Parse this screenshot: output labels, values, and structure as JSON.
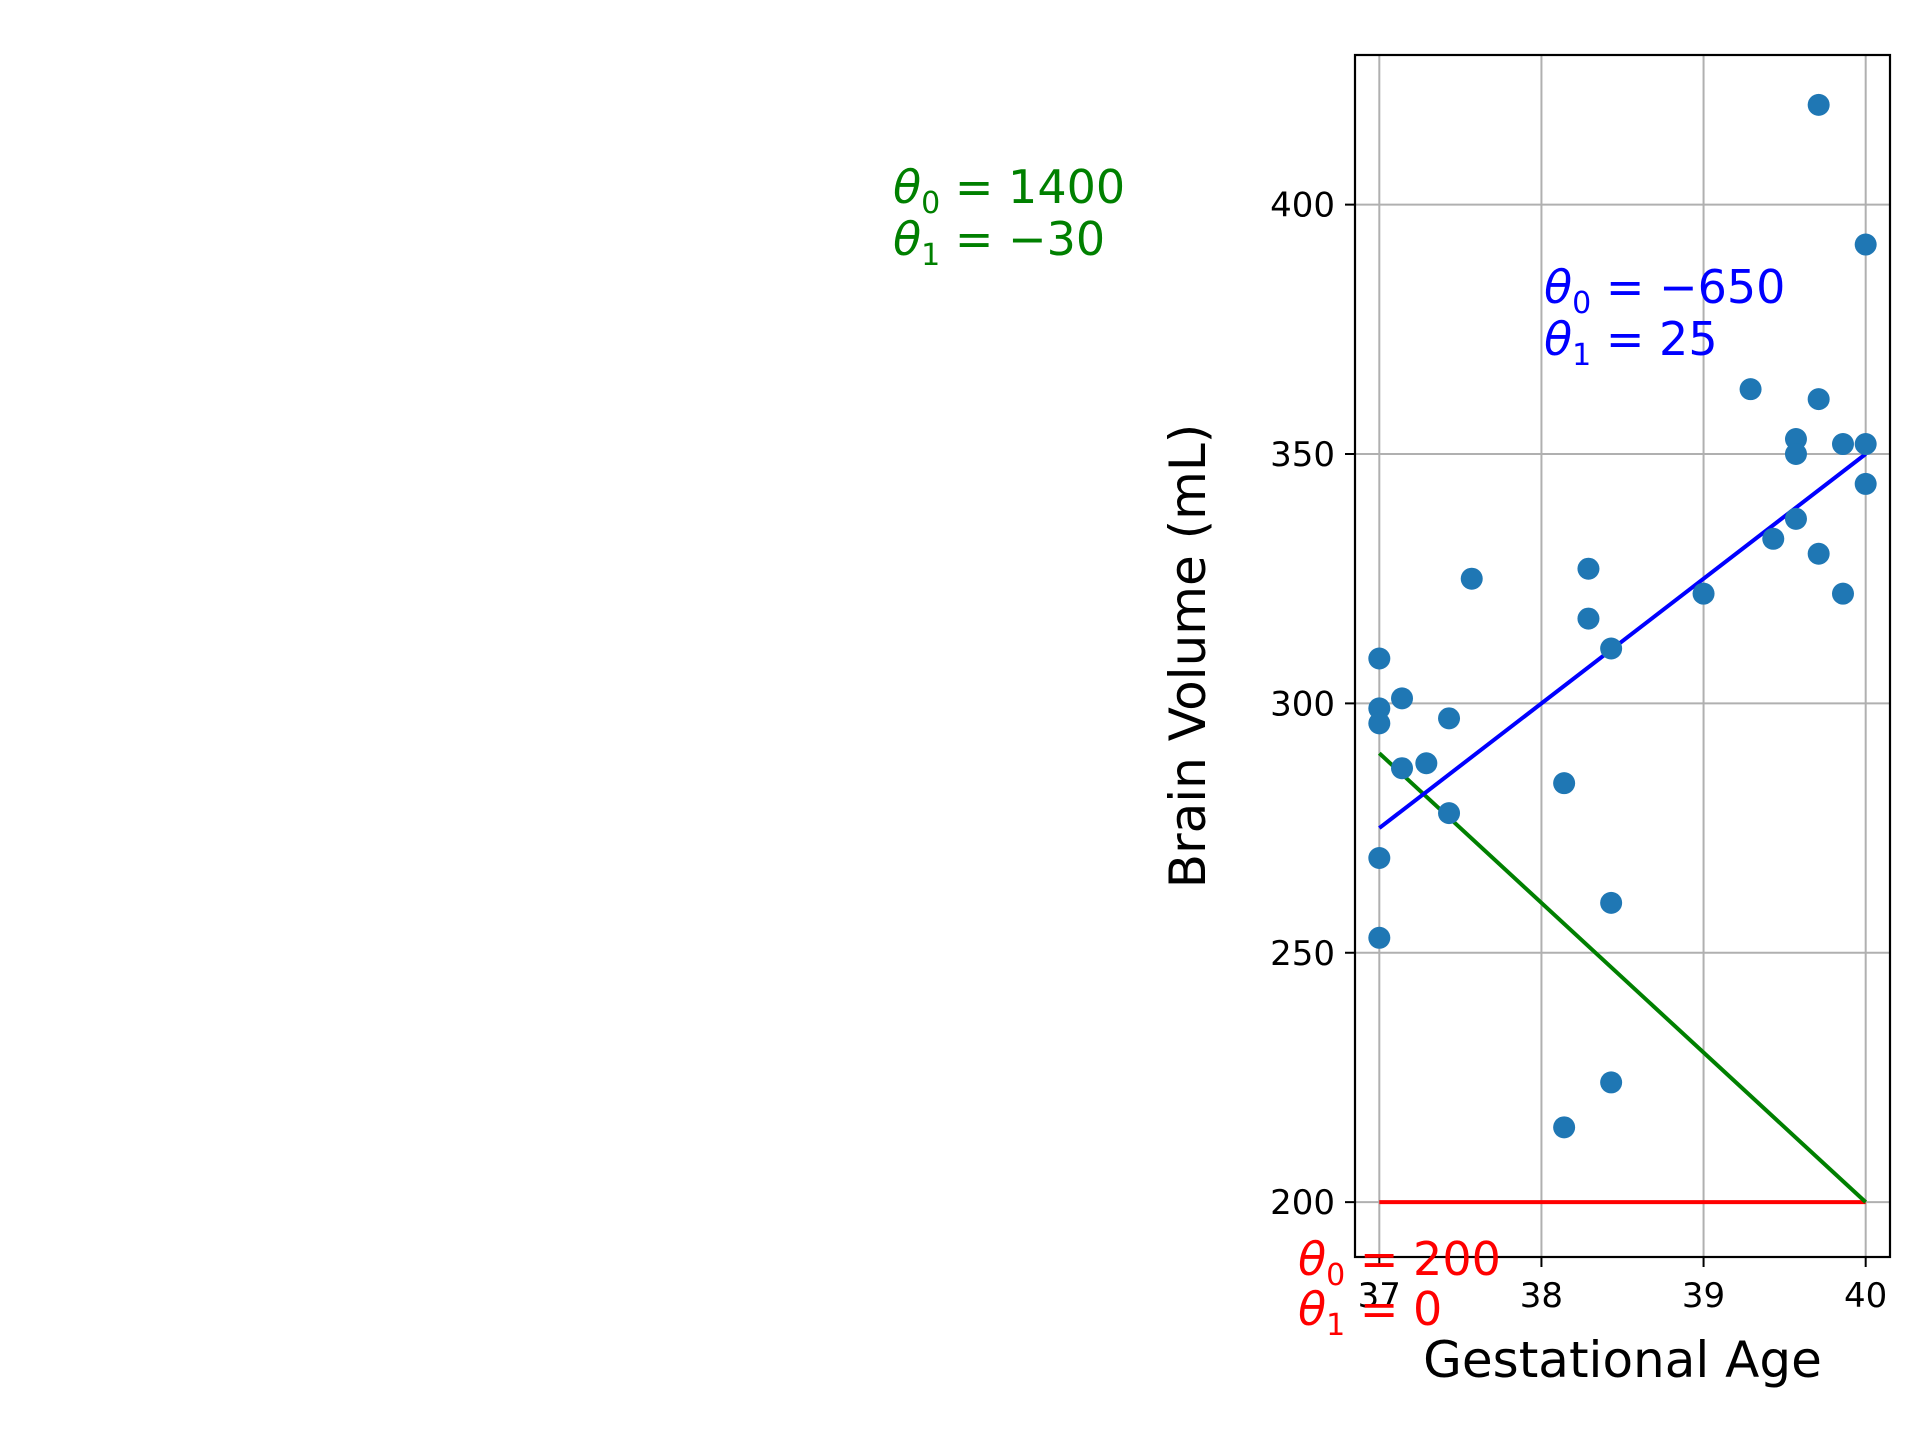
{
  "chart_data": {
    "type": "scatter",
    "title": "",
    "xlabel": "Gestational Age",
    "ylabel": "Brain Volume (mL)",
    "xlim": [
      36.85,
      40.15
    ],
    "ylim": [
      189,
      430
    ],
    "grid": true,
    "x_ticks": [
      37,
      38,
      39,
      40
    ],
    "y_ticks": [
      200,
      250,
      300,
      350,
      400
    ],
    "point_color": "#1f77b4",
    "points": [
      {
        "x": 37.0,
        "y": 309
      },
      {
        "x": 37.0,
        "y": 299
      },
      {
        "x": 37.0,
        "y": 296
      },
      {
        "x": 37.0,
        "y": 269
      },
      {
        "x": 37.0,
        "y": 253
      },
      {
        "x": 37.14,
        "y": 301
      },
      {
        "x": 37.14,
        "y": 287
      },
      {
        "x": 37.29,
        "y": 288
      },
      {
        "x": 37.43,
        "y": 297
      },
      {
        "x": 37.43,
        "y": 278
      },
      {
        "x": 37.57,
        "y": 325
      },
      {
        "x": 38.14,
        "y": 284
      },
      {
        "x": 38.14,
        "y": 215
      },
      {
        "x": 38.29,
        "y": 327
      },
      {
        "x": 38.29,
        "y": 317
      },
      {
        "x": 38.43,
        "y": 311
      },
      {
        "x": 38.43,
        "y": 260
      },
      {
        "x": 38.43,
        "y": 224
      },
      {
        "x": 39.0,
        "y": 322
      },
      {
        "x": 39.29,
        "y": 363
      },
      {
        "x": 39.43,
        "y": 333
      },
      {
        "x": 39.57,
        "y": 353
      },
      {
        "x": 39.57,
        "y": 350
      },
      {
        "x": 39.57,
        "y": 337
      },
      {
        "x": 39.71,
        "y": 420
      },
      {
        "x": 39.71,
        "y": 361
      },
      {
        "x": 39.71,
        "y": 330
      },
      {
        "x": 39.86,
        "y": 352
      },
      {
        "x": 39.86,
        "y": 322
      },
      {
        "x": 40.0,
        "y": 392
      },
      {
        "x": 40.0,
        "y": 352
      },
      {
        "x": 40.0,
        "y": 344
      }
    ],
    "lines": [
      {
        "theta0": 200,
        "theta1": 0,
        "color": "#ff0000",
        "x_range": [
          37,
          40
        ],
        "label_theta0": "200",
        "label_theta1": "0"
      },
      {
        "theta0": 1400,
        "theta1": -30,
        "color": "#008000",
        "x_range": [
          37,
          40
        ],
        "label_theta0": "1400",
        "label_theta1": "−30"
      },
      {
        "theta0": -650,
        "theta1": 25,
        "color": "#0000ff",
        "x_range": [
          37,
          40
        ],
        "label_theta0": "−650",
        "label_theta1": "25"
      }
    ]
  }
}
